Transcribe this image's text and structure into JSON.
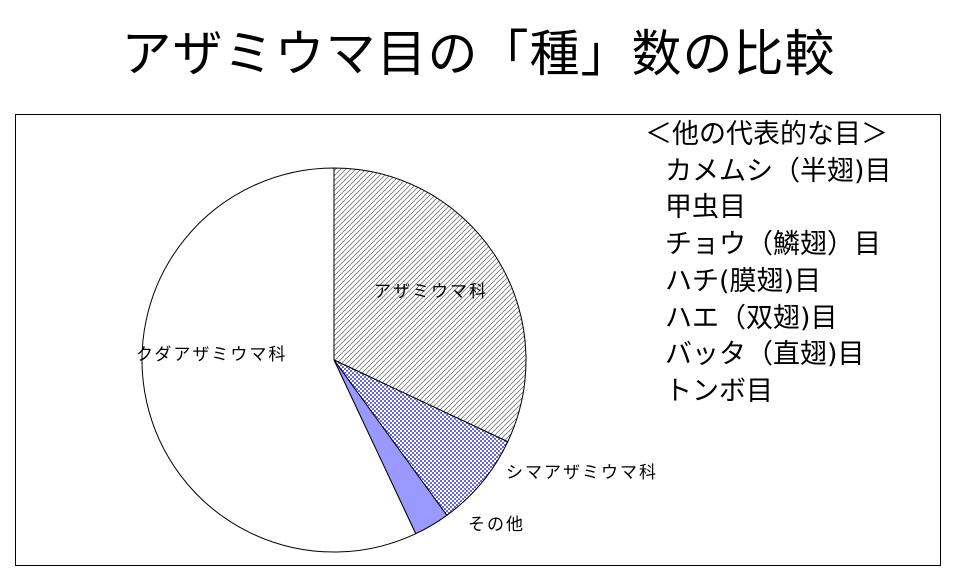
{
  "title": "アザミウマ目の「種」数の比較",
  "chart_data": {
    "type": "pie",
    "title": "アザミウマ目の「種」数の比較",
    "start_angle_deg": 0,
    "direction": "clockwise",
    "slices": [
      {
        "label": "アザミウマ科",
        "value": 0.32,
        "fill": "hatch-diagonal",
        "color": "#ffffff"
      },
      {
        "label": "シマアザミウマ科",
        "value": 0.08,
        "fill": "hatch-check",
        "color": "#ffffff"
      },
      {
        "label": "その他",
        "value": 0.03,
        "fill": "solid",
        "color": "#9999ff"
      },
      {
        "label": "クダアザミウマ科",
        "value": 0.57,
        "fill": "solid",
        "color": "#ffffff"
      }
    ]
  },
  "legend": {
    "heading": "＜他の代表的な目＞",
    "items": [
      "カメムシ（半翅)目",
      "甲虫目",
      "チョウ（鱗翅）目",
      "ハチ(膜翅)目",
      "ハエ（双翅)目",
      "バッタ（直翅)目",
      "トンボ目"
    ]
  }
}
